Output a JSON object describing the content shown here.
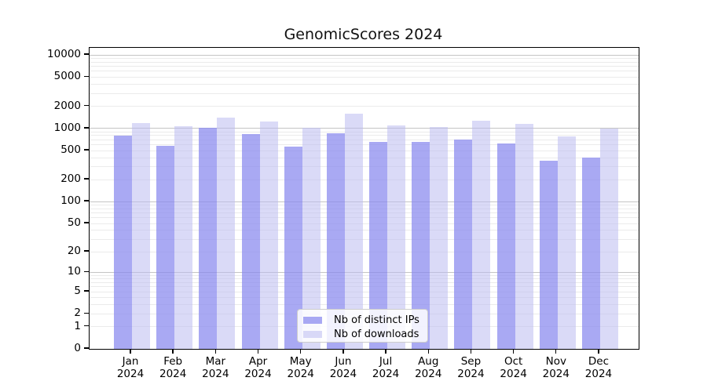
{
  "title": "GenomicScores 2024",
  "chart_data": {
    "type": "bar",
    "title": "GenomicScores 2024",
    "y_scale": "log1p",
    "grid": true,
    "ylim": [
      0,
      12500
    ],
    "y_ticks": [
      0,
      1,
      2,
      5,
      10,
      20,
      50,
      100,
      200,
      500,
      1000,
      2000,
      5000,
      10000
    ],
    "categories": [
      "Jan",
      "Feb",
      "Mar",
      "Apr",
      "May",
      "Jun",
      "Jul",
      "Aug",
      "Sep",
      "Oct",
      "Nov",
      "Dec"
    ],
    "x_label_year": "2024",
    "series": [
      {
        "name": "Nb of distinct IPs",
        "color": "#8888ee",
        "values": [
          800,
          580,
          1030,
          850,
          560,
          860,
          660,
          650,
          710,
          620,
          360,
          400
        ]
      },
      {
        "name": "Nb of downloads",
        "color": "#bbbbf0",
        "values": [
          1190,
          1070,
          1410,
          1240,
          1020,
          1580,
          1090,
          1040,
          1290,
          1165,
          780,
          1000
        ]
      }
    ],
    "legend_position": "lower center"
  },
  "colors": {
    "major_grid": "#c4c4c4",
    "minor_grid": "#ebebeb",
    "frame": "#000000",
    "background": "#ffffff"
  }
}
